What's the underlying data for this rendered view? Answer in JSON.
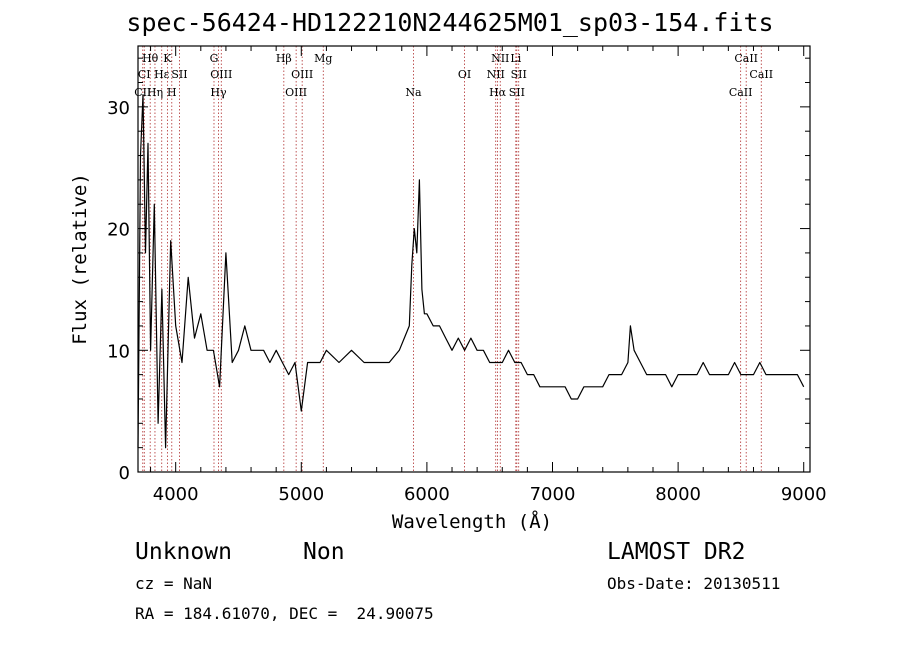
{
  "chart_data": {
    "type": "line",
    "title": "spec-56424-HD122210N244625M01_sp03-154.fits",
    "xlabel": "Wavelength (Å)",
    "ylabel": "Flux (relative)",
    "xlim": [
      3700,
      9050
    ],
    "ylim": [
      0,
      35
    ],
    "x_ticks": [
      4000,
      5000,
      6000,
      7000,
      8000,
      9000
    ],
    "y_ticks": [
      0,
      10,
      20,
      30
    ],
    "series": [
      {
        "x": [
          3700,
          3720,
          3740,
          3760,
          3780,
          3800,
          3830,
          3860,
          3890,
          3920,
          3960,
          4000,
          4050,
          4100,
          4150,
          4200,
          4250,
          4300,
          4350,
          4400,
          4450,
          4500,
          4550,
          4600,
          4650,
          4700,
          4750,
          4800,
          4850,
          4900,
          4950,
          5000,
          5050,
          5100,
          5150,
          5200,
          5300,
          5400,
          5500,
          5600,
          5700,
          5780,
          5820,
          5860,
          5880,
          5900,
          5920,
          5940,
          5960,
          5980,
          6000,
          6050,
          6100,
          6150,
          6200,
          6250,
          6300,
          6350,
          6400,
          6450,
          6500,
          6550,
          6600,
          6650,
          6700,
          6750,
          6800,
          6850,
          6900,
          6950,
          7000,
          7050,
          7100,
          7150,
          7200,
          7250,
          7300,
          7350,
          7400,
          7450,
          7500,
          7550,
          7600,
          7620,
          7650,
          7700,
          7750,
          7800,
          7850,
          7900,
          7950,
          8000,
          8050,
          8100,
          8150,
          8200,
          8250,
          8300,
          8350,
          8400,
          8450,
          8500,
          8550,
          8600,
          8650,
          8700,
          8750,
          8800,
          8850,
          8900,
          8950,
          9000
        ],
        "y": [
          2,
          26,
          31,
          18,
          27,
          10,
          22,
          4,
          15,
          2,
          19,
          12,
          9,
          16,
          11,
          13,
          10,
          10,
          7,
          18,
          9,
          10,
          12,
          10,
          10,
          10,
          9,
          10,
          9,
          8,
          9,
          5,
          9,
          9,
          9,
          10,
          9,
          10,
          9,
          9,
          9,
          10,
          11,
          12,
          17,
          20,
          18,
          24,
          15,
          13,
          13,
          12,
          12,
          11,
          10,
          11,
          10,
          11,
          10,
          10,
          9,
          9,
          9,
          10,
          9,
          9,
          8,
          8,
          7,
          7,
          7,
          7,
          7,
          6,
          6,
          7,
          7,
          7,
          7,
          8,
          8,
          8,
          9,
          12,
          10,
          9,
          8,
          8,
          8,
          8,
          7,
          8,
          8,
          8,
          8,
          9,
          8,
          8,
          8,
          8,
          9,
          8,
          8,
          8,
          9,
          8,
          8,
          8,
          8,
          8,
          8,
          7
        ]
      }
    ],
    "lines": [
      {
        "label": "Hθ",
        "x": 3797,
        "row": 1
      },
      {
        "label": "CI",
        "x": 3750,
        "row": 2
      },
      {
        "label": "CII",
        "x": 3738,
        "row": 3
      },
      {
        "label": "Hε",
        "x": 3889,
        "row": 2
      },
      {
        "label": "Hη",
        "x": 3835,
        "row": 3
      },
      {
        "label": "K",
        "x": 3934,
        "row": 1
      },
      {
        "label": "SII",
        "x": 4030,
        "row": 2
      },
      {
        "label": "H",
        "x": 3969,
        "row": 3
      },
      {
        "label": "G",
        "x": 4305,
        "row": 1
      },
      {
        "label": "OIII",
        "x": 4363,
        "row": 2
      },
      {
        "label": "Hγ",
        "x": 4341,
        "row": 3
      },
      {
        "label": "Hβ",
        "x": 4861,
        "row": 1
      },
      {
        "label": "OIII",
        "x": 5007,
        "row": 2
      },
      {
        "label": "OIII",
        "x": 4959,
        "row": 3
      },
      {
        "label": "Mg",
        "x": 5175,
        "row": 1
      },
      {
        "label": "Na",
        "x": 5893,
        "row": 3
      },
      {
        "label": "OI",
        "x": 6300,
        "row": 2
      },
      {
        "label": "NII",
        "x": 6584,
        "row": 1
      },
      {
        "label": "NII",
        "x": 6548,
        "row": 2
      },
      {
        "label": "Hα",
        "x": 6563,
        "row": 3
      },
      {
        "label": "Li",
        "x": 6708,
        "row": 1
      },
      {
        "label": "SII",
        "x": 6731,
        "row": 2
      },
      {
        "label": "SII",
        "x": 6716,
        "row": 3
      },
      {
        "label": "CaII",
        "x": 8542,
        "row": 1
      },
      {
        "label": "CaII",
        "x": 8662,
        "row": 2
      },
      {
        "label": "CaII",
        "x": 8498,
        "row": 3
      }
    ],
    "grid": false
  },
  "info": {
    "class": "Unknown",
    "subclass": "Non",
    "survey": "LAMOST DR2",
    "cz": "cz = NaN",
    "obs_date": "Obs-Date: 20130511",
    "radec": "RA = 184.61070, DEC =  24.90075"
  }
}
